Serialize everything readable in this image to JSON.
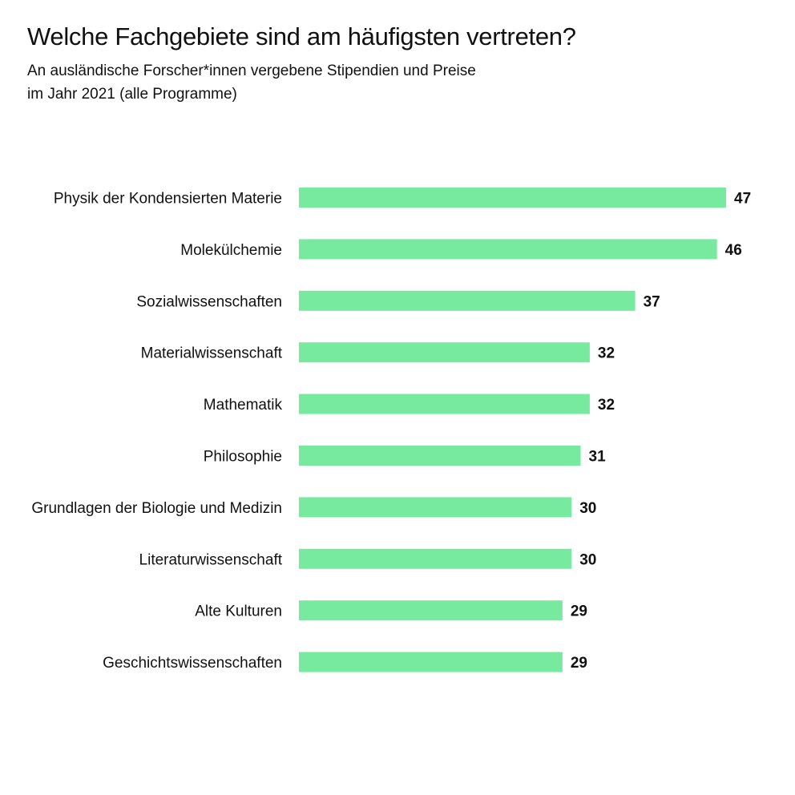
{
  "chart_data": {
    "type": "bar",
    "orientation": "horizontal",
    "title": "Welche Fachgebiete sind am häufigsten vertreten?",
    "subtitle_lines": [
      "An ausländische Forscher*innen vergebene Stipendien und Preise",
      "im Jahr 2021 (alle Programme)"
    ],
    "categories": [
      "Physik der Kondensierten Materie",
      "Molekülchemie",
      "Sozialwissenschaften",
      "Materialwissenschaft",
      "Mathematik",
      "Philosophie",
      "Grundlagen der Biologie und Medizin",
      "Literaturwissenschaft",
      "Alte Kulturen",
      "Geschichtswissenschaften"
    ],
    "values": [
      47,
      46,
      37,
      32,
      32,
      31,
      30,
      30,
      29,
      29
    ],
    "xlim": [
      0,
      47
    ],
    "grid": false,
    "data_labels": true,
    "bar_color": "#77eaa0"
  }
}
